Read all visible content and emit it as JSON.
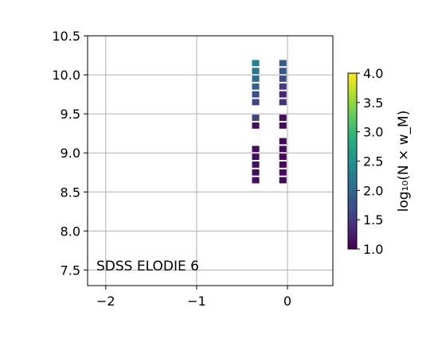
{
  "chart_data": {
    "type": "heatmap",
    "title": "",
    "xlabel": "",
    "ylabel": "",
    "xlim": [
      -2.2,
      0.5
    ],
    "ylim": [
      7.3,
      10.5
    ],
    "xticks": [
      -2,
      -1,
      0
    ],
    "xtick_labels": [
      "−2",
      "−1",
      "0"
    ],
    "yticks": [
      7.5,
      8.0,
      8.5,
      9.0,
      9.5,
      10.0,
      10.5
    ],
    "ytick_labels": [
      "7.5",
      "8.0",
      "8.5",
      "9.0",
      "9.5",
      "10.0",
      "10.5"
    ],
    "grid": true,
    "annotation": "SDSS ELODIE 6",
    "colorbar": {
      "label": "log₁₀(N × w_M)",
      "colormap": "viridis",
      "range": [
        1.0,
        4.0
      ],
      "ticks": [
        1.0,
        1.5,
        2.0,
        2.5,
        3.0,
        3.5,
        4.0
      ],
      "tick_labels": [
        "1.0",
        "1.5",
        "2.0",
        "2.5",
        "3.0",
        "3.5",
        "4.0"
      ]
    },
    "cell_size": [
      0.08,
      0.08
    ],
    "cells": [
      {
        "x": -0.35,
        "y": 10.15,
        "v": 2.3
      },
      {
        "x": -0.35,
        "y": 10.05,
        "v": 2.2
      },
      {
        "x": -0.35,
        "y": 9.95,
        "v": 2.1
      },
      {
        "x": -0.35,
        "y": 9.85,
        "v": 1.9
      },
      {
        "x": -0.35,
        "y": 9.75,
        "v": 1.7
      },
      {
        "x": -0.35,
        "y": 9.65,
        "v": 1.6
      },
      {
        "x": -0.35,
        "y": 9.45,
        "v": 1.6
      },
      {
        "x": -0.35,
        "y": 9.35,
        "v": 1.1
      },
      {
        "x": -0.35,
        "y": 9.05,
        "v": 1.1
      },
      {
        "x": -0.35,
        "y": 8.95,
        "v": 1.1
      },
      {
        "x": -0.35,
        "y": 8.85,
        "v": 1.1
      },
      {
        "x": -0.35,
        "y": 8.75,
        "v": 1.1
      },
      {
        "x": -0.35,
        "y": 8.65,
        "v": 1.1
      },
      {
        "x": -0.05,
        "y": 10.15,
        "v": 1.9
      },
      {
        "x": -0.05,
        "y": 10.05,
        "v": 1.8
      },
      {
        "x": -0.05,
        "y": 9.95,
        "v": 1.7
      },
      {
        "x": -0.05,
        "y": 9.85,
        "v": 1.5
      },
      {
        "x": -0.05,
        "y": 9.75,
        "v": 1.3
      },
      {
        "x": -0.05,
        "y": 9.65,
        "v": 1.4
      },
      {
        "x": -0.05,
        "y": 9.45,
        "v": 1.1
      },
      {
        "x": -0.05,
        "y": 9.35,
        "v": 1.05
      },
      {
        "x": -0.05,
        "y": 9.15,
        "v": 1.05
      },
      {
        "x": -0.05,
        "y": 9.05,
        "v": 1.05
      },
      {
        "x": -0.05,
        "y": 8.95,
        "v": 1.05
      },
      {
        "x": -0.05,
        "y": 8.85,
        "v": 1.05
      },
      {
        "x": -0.05,
        "y": 8.75,
        "v": 1.05
      },
      {
        "x": -0.05,
        "y": 8.65,
        "v": 1.05
      }
    ]
  }
}
